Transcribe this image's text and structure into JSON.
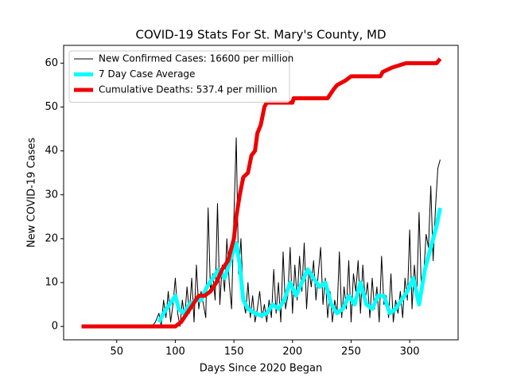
{
  "chart_data": {
    "type": "line",
    "title": "COVID-19 Stats For St. Mary's County, MD",
    "xlabel": "Days Since 2020 Began",
    "ylabel": "New COVID-19 Cases",
    "xlim": [
      4.7,
      341.3
    ],
    "ylim": [
      -3.05,
      64.05
    ],
    "xticks": [
      50,
      100,
      150,
      200,
      250,
      300
    ],
    "yticks": [
      0,
      10,
      20,
      30,
      40,
      50,
      60
    ],
    "legend": "upper left",
    "series": [
      {
        "name": "New Confirmed Cases: 16600 per million",
        "color": "#000000",
        "linewidth": 1,
        "x": [
          80,
          83,
          86,
          88,
          90,
          92,
          94,
          96,
          98,
          100,
          102,
          104,
          106,
          108,
          110,
          112,
          114,
          116,
          118,
          120,
          122,
          124,
          126,
          128,
          130,
          132,
          134,
          136,
          138,
          140,
          142,
          144,
          146,
          148,
          150,
          152,
          154,
          156,
          158,
          160,
          162,
          164,
          166,
          168,
          170,
          172,
          174,
          176,
          178,
          180,
          182,
          184,
          186,
          188,
          190,
          192,
          194,
          196,
          198,
          200,
          202,
          204,
          206,
          208,
          210,
          212,
          214,
          216,
          218,
          220,
          222,
          224,
          226,
          228,
          230,
          232,
          234,
          236,
          238,
          240,
          242,
          244,
          246,
          248,
          250,
          252,
          254,
          256,
          258,
          260,
          262,
          264,
          266,
          268,
          270,
          272,
          274,
          276,
          278,
          280,
          282,
          284,
          286,
          288,
          290,
          292,
          294,
          296,
          298,
          300,
          302,
          304,
          306,
          308,
          310,
          312,
          314,
          316,
          318,
          320,
          322,
          324,
          326
        ],
        "values": [
          0,
          1,
          3,
          0,
          6,
          2,
          8,
          1,
          5,
          11,
          3,
          0,
          6,
          2,
          9,
          3,
          11,
          1,
          14,
          4,
          8,
          5,
          2,
          27,
          8,
          12,
          6,
          28,
          5,
          14,
          8,
          20,
          10,
          4,
          25,
          43,
          12,
          20,
          6,
          3,
          10,
          2,
          7,
          1,
          4,
          8,
          2,
          5,
          1,
          6,
          2,
          13,
          3,
          10,
          1,
          17,
          4,
          7,
          18,
          3,
          14,
          6,
          16,
          8,
          19,
          4,
          13,
          9,
          15,
          6,
          12,
          18,
          5,
          11,
          2,
          8,
          1,
          6,
          3,
          17,
          2,
          9,
          4,
          15,
          1,
          12,
          8,
          15,
          3,
          14,
          6,
          10,
          2,
          11,
          4,
          9,
          1,
          16,
          5,
          7,
          2,
          12,
          1,
          6,
          3,
          8,
          2,
          11,
          6,
          22,
          4,
          14,
          7,
          26,
          8,
          12,
          21,
          18,
          32,
          15,
          27,
          36,
          38
        ]
      },
      {
        "name": "7 Day Case Average",
        "color": "#00ffff",
        "linewidth": 5,
        "x": [
          86,
          90,
          95,
          100,
          103,
          107,
          112,
          117,
          122,
          127,
          132,
          137,
          142,
          147,
          152,
          155,
          158,
          162,
          168,
          173,
          178,
          183,
          188,
          193,
          198,
          203,
          208,
          213,
          218,
          223,
          228,
          233,
          238,
          243,
          248,
          253,
          258,
          263,
          268,
          273,
          278,
          283,
          288,
          293,
          298,
          303,
          308,
          313,
          318,
          323,
          326
        ],
        "values": [
          1,
          3,
          5,
          7,
          4,
          3,
          5,
          6,
          6,
          9,
          11,
          13,
          11,
          15,
          19,
          14,
          6,
          4,
          3,
          2.5,
          3,
          5,
          4,
          6,
          10,
          7,
          10,
          13,
          11,
          9,
          10,
          5,
          3,
          4,
          7,
          5,
          10,
          5,
          4,
          7,
          7,
          3,
          4,
          6,
          8,
          11,
          5,
          13,
          18,
          23,
          27
        ]
      },
      {
        "name": "Cumulative Deaths: 537.4 per million",
        "color": "#ee0000",
        "linewidth": 5,
        "x": [
          20,
          100,
          105,
          110,
          115,
          120,
          125,
          130,
          135,
          140,
          145,
          150,
          152,
          155,
          158,
          162,
          165,
          168,
          170,
          173,
          176,
          178,
          200,
          201,
          230,
          235,
          238,
          245,
          250,
          275,
          277,
          285,
          297,
          323,
          326
        ],
        "values": [
          0,
          0,
          1,
          3,
          5,
          7,
          7,
          8,
          10,
          13,
          15,
          20,
          25,
          30,
          34,
          35,
          39,
          40,
          44,
          46,
          50,
          51,
          51,
          52,
          52,
          54,
          55,
          56,
          57,
          57,
          58,
          59,
          60,
          60,
          61
        ]
      }
    ]
  }
}
